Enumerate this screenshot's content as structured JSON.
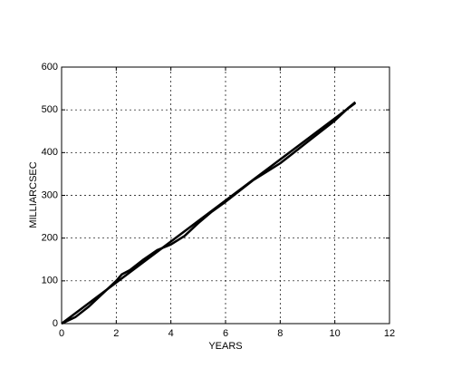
{
  "chart_data": {
    "type": "line",
    "x_label": "YEARS",
    "y_label": "MILLIARCSEC",
    "xlim": [
      0,
      12
    ],
    "xticks": [
      0,
      2,
      4,
      6,
      8,
      10,
      12
    ],
    "ylim": [
      0,
      600
    ],
    "yticks": [
      0,
      100,
      200,
      300,
      400,
      500,
      600
    ],
    "grid": true,
    "series": [
      {
        "color": "#000000",
        "x": [
          0,
          10.75
        ],
        "values": [
          0,
          516
        ]
      },
      {
        "color": "#000000",
        "x": [
          0,
          0.5,
          1,
          1.5,
          2,
          2.2,
          2.5,
          3,
          3.5,
          4,
          4.5,
          5,
          5.5,
          6,
          6.5,
          7,
          7.5,
          8,
          8.5,
          9,
          9.5,
          10,
          10.5,
          10.75
        ],
        "values": [
          0,
          15,
          40,
          70,
          100,
          115,
          125,
          150,
          172,
          185,
          205,
          235,
          262,
          285,
          310,
          335,
          355,
          375,
          400,
          425,
          450,
          475,
          505,
          518
        ]
      }
    ]
  }
}
